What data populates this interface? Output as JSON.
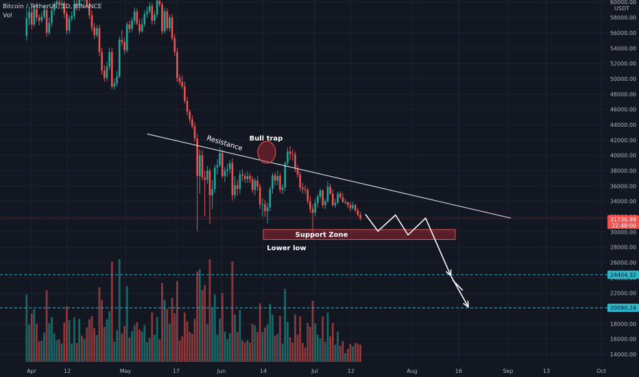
{
  "header": {
    "symbol_label": "Bitcoin / TetherUS, 1D, BINANCE",
    "indicator_label": "Vol"
  },
  "axis": {
    "currency": "USDT",
    "top_label": "60000.00"
  },
  "colors": {
    "background": "#131722",
    "up": "#26a69a",
    "down": "#ef5350",
    "grid": "#1e222d",
    "text": "#d1d4dc",
    "axis_text": "#b2b5be",
    "drawing": "#ffffff",
    "support": "#b22833",
    "target_line": "#2bb6c9"
  },
  "chart_data": {
    "type": "candlestick",
    "title": "Bitcoin / TetherUS, 1D, BINANCE",
    "ylim": [
      13000,
      61000
    ],
    "y_ticks": [
      14000,
      16000,
      18000,
      20000,
      22000,
      24000,
      26000,
      28000,
      30000,
      32000,
      34000,
      36000,
      38000,
      40000,
      42000,
      44000,
      46000,
      48000,
      50000,
      52000,
      54000,
      56000,
      58000,
      60000
    ],
    "x_ticks": [
      "Apr",
      "12",
      "May",
      "17",
      "Jun",
      "14",
      "Jul",
      "12",
      "Aug",
      "16",
      "Sep",
      "13",
      "Oct"
    ],
    "current_price": "31736.99",
    "countdown": "22:48:00",
    "price_levels": [
      {
        "label": "24404.32",
        "value": 24404.32
      },
      {
        "label": "20090.24",
        "value": 20090.24
      }
    ],
    "annotations": {
      "resistance": "Resistance",
      "bull_trap": "Bull trap",
      "support_zone": "Support Zone",
      "lower_low": "Lower low"
    },
    "support_zone_range": [
      29000,
      30300
    ],
    "resistance_line": [
      [
        -85,
        42800
      ],
      [
        60,
        31800
      ]
    ],
    "projection_path": [
      [
        2,
        32300
      ],
      [
        7,
        30100
      ],
      [
        14,
        32200
      ],
      [
        19,
        29600
      ],
      [
        26,
        31800
      ],
      [
        36,
        24300
      ],
      [
        43,
        20200
      ]
    ],
    "candles": [
      [
        55600,
        57900
      ],
      [
        57900,
        58700
      ],
      [
        58700,
        57100
      ],
      [
        57100,
        59100
      ],
      [
        59100,
        58000
      ],
      [
        58000,
        57600
      ],
      [
        57600,
        58100
      ],
      [
        58100,
        59000
      ],
      [
        59000,
        56000
      ],
      [
        56000,
        57300
      ],
      [
        57300,
        58900
      ],
      [
        58900,
        59700
      ],
      [
        59700,
        60100
      ],
      [
        60100,
        59600
      ],
      [
        59600,
        59900
      ],
      [
        59900,
        58500
      ],
      [
        58500,
        56300
      ],
      [
        56300,
        57900
      ],
      [
        57900,
        58200
      ],
      [
        58200,
        59800
      ],
      [
        59800,
        59600
      ],
      [
        59600,
        61000
      ],
      [
        61000,
        60500
      ],
      [
        60500,
        60900
      ],
      [
        60900,
        59800
      ],
      [
        59800,
        58300
      ],
      [
        58300,
        56700
      ],
      [
        56700,
        55700
      ],
      [
        55700,
        56600
      ],
      [
        56600,
        53500
      ],
      [
        53500,
        51100
      ],
      [
        51100,
        50100
      ],
      [
        50100,
        51600
      ],
      [
        51600,
        53500
      ],
      [
        53500,
        49000
      ],
      [
        49000,
        49400
      ],
      [
        49400,
        50300
      ],
      [
        50300,
        55100
      ],
      [
        55100,
        54800
      ],
      [
        54800,
        53700
      ],
      [
        53700,
        57100
      ],
      [
        57100,
        56500
      ],
      [
        56500,
        57600
      ],
      [
        57600,
        58800
      ],
      [
        58800,
        57200
      ],
      [
        57200,
        56200
      ],
      [
        56200,
        57100
      ],
      [
        57100,
        58500
      ],
      [
        58500,
        58800
      ],
      [
        58800,
        59500
      ],
      [
        59500,
        57600
      ],
      [
        57600,
        58400
      ],
      [
        58400,
        60200
      ],
      [
        60200,
        59700
      ],
      [
        59700,
        56200
      ],
      [
        56200,
        58800
      ],
      [
        58800,
        56600
      ],
      [
        56600,
        58000
      ],
      [
        58000,
        55300
      ],
      [
        55300,
        53500
      ],
      [
        53500,
        50100
      ],
      [
        50100,
        49600
      ],
      [
        49600,
        49000
      ],
      [
        49000,
        47100
      ],
      [
        47100,
        45700
      ],
      [
        45700,
        44700
      ],
      [
        44700,
        43800
      ],
      [
        43800,
        42200
      ],
      [
        42200,
        37300
      ],
      [
        37300,
        40000
      ],
      [
        40000,
        37100
      ],
      [
        37100,
        36800
      ],
      [
        36800,
        38000
      ],
      [
        38000,
        34800
      ],
      [
        34800,
        35600
      ],
      [
        35600,
        38400
      ],
      [
        38400,
        38700
      ],
      [
        38700,
        40300
      ],
      [
        40300,
        37300
      ],
      [
        37300,
        38000
      ],
      [
        38000,
        38200
      ],
      [
        38200,
        39000
      ],
      [
        39000,
        34800
      ],
      [
        34800,
        36100
      ],
      [
        36100,
        35600
      ],
      [
        35600,
        37500
      ],
      [
        37500,
        37300
      ],
      [
        37300,
        36900
      ],
      [
        36900,
        37300
      ],
      [
        37300,
        36900
      ],
      [
        36900,
        35500
      ],
      [
        35500,
        36700
      ],
      [
        36700,
        35900
      ],
      [
        35900,
        33600
      ],
      [
        33600,
        33600
      ],
      [
        33600,
        32700
      ],
      [
        32700,
        33200
      ],
      [
        33200,
        35600
      ],
      [
        35600,
        37400
      ],
      [
        37400,
        36700
      ],
      [
        36700,
        37300
      ],
      [
        37300,
        35500
      ],
      [
        35500,
        35800
      ],
      [
        35800,
        39000
      ],
      [
        39000,
        40500
      ],
      [
        40500,
        40200
      ],
      [
        40200,
        40100
      ],
      [
        40100,
        38300
      ],
      [
        38300,
        37500
      ],
      [
        37500,
        35800
      ],
      [
        35800,
        35600
      ],
      [
        35600,
        35500
      ],
      [
        35500,
        34000
      ],
      [
        34000,
        33000
      ],
      [
        33000,
        32500
      ],
      [
        32500,
        33800
      ],
      [
        33800,
        34600
      ],
      [
        34600,
        35400
      ],
      [
        35400,
        33500
      ],
      [
        33500,
        34000
      ],
      [
        34000,
        35900
      ],
      [
        35900,
        35000
      ],
      [
        35000,
        33500
      ],
      [
        33500,
        33800
      ],
      [
        33800,
        35000
      ],
      [
        35000,
        34500
      ],
      [
        34500,
        33900
      ],
      [
        33900,
        33900
      ],
      [
        33900,
        33500
      ],
      [
        33500,
        33100
      ],
      [
        33100,
        33500
      ],
      [
        33500,
        32800
      ],
      [
        32800,
        32200
      ],
      [
        32200,
        31736.99
      ]
    ],
    "wicks": [
      [
        55000,
        59000
      ],
      [
        57000,
        59500
      ],
      [
        56500,
        59400
      ],
      [
        56800,
        59800
      ],
      [
        57500,
        59900
      ],
      [
        57000,
        58400
      ],
      [
        57300,
        58700
      ],
      [
        57800,
        59600
      ],
      [
        55500,
        59400
      ],
      [
        55700,
        58000
      ],
      [
        56800,
        59400
      ],
      [
        58300,
        60100
      ],
      [
        59300,
        60800
      ],
      [
        59200,
        60700
      ],
      [
        59000,
        60300
      ],
      [
        57900,
        60200
      ],
      [
        55800,
        58900
      ],
      [
        55900,
        58300
      ],
      [
        57500,
        58800
      ],
      [
        57700,
        60300
      ],
      [
        58900,
        60300
      ],
      [
        58900,
        61500
      ],
      [
        60100,
        61900
      ],
      [
        60000,
        61600
      ],
      [
        59300,
        61400
      ],
      [
        57800,
        60300
      ],
      [
        56200,
        58900
      ],
      [
        55200,
        57300
      ],
      [
        55400,
        57000
      ],
      [
        53000,
        57100
      ],
      [
        50500,
        54000
      ],
      [
        49600,
        51800
      ],
      [
        49700,
        52200
      ],
      [
        51200,
        54100
      ],
      [
        48700,
        54000
      ],
      [
        48600,
        50000
      ],
      [
        49000,
        51000
      ],
      [
        50100,
        55500
      ],
      [
        54300,
        56400
      ],
      [
        53200,
        55400
      ],
      [
        53400,
        57400
      ],
      [
        56000,
        57600
      ],
      [
        56200,
        58000
      ],
      [
        57100,
        59300
      ],
      [
        57000,
        59200
      ],
      [
        55800,
        57800
      ],
      [
        56000,
        57900
      ],
      [
        56800,
        58900
      ],
      [
        58000,
        59400
      ],
      [
        58500,
        60000
      ],
      [
        57100,
        59900
      ],
      [
        57100,
        58800
      ],
      [
        58000,
        60500
      ],
      [
        59400,
        60900
      ],
      [
        55800,
        60000
      ],
      [
        55900,
        59300
      ],
      [
        56300,
        59200
      ],
      [
        56200,
        58400
      ],
      [
        55000,
        58500
      ],
      [
        53000,
        55800
      ],
      [
        49600,
        54000
      ],
      [
        49200,
        50600
      ],
      [
        48700,
        50400
      ],
      [
        46800,
        49600
      ],
      [
        45200,
        47600
      ],
      [
        44200,
        46000
      ],
      [
        43500,
        45200
      ],
      [
        41800,
        44300
      ],
      [
        30100,
        42800
      ],
      [
        35000,
        40800
      ],
      [
        36700,
        40700
      ],
      [
        32000,
        38000
      ],
      [
        36300,
        38600
      ],
      [
        31000,
        38300
      ],
      [
        33000,
        36800
      ],
      [
        35100,
        38800
      ],
      [
        37500,
        39500
      ],
      [
        38500,
        41000
      ],
      [
        37000,
        40700
      ],
      [
        36500,
        38500
      ],
      [
        37200,
        38900
      ],
      [
        37600,
        39400
      ],
      [
        34100,
        39600
      ],
      [
        34300,
        37300
      ],
      [
        34700,
        36800
      ],
      [
        35000,
        38000
      ],
      [
        36600,
        38200
      ],
      [
        36400,
        37700
      ],
      [
        36400,
        37900
      ],
      [
        36400,
        37700
      ],
      [
        35100,
        37300
      ],
      [
        34800,
        37000
      ],
      [
        35400,
        37300
      ],
      [
        33000,
        36300
      ],
      [
        32000,
        34400
      ],
      [
        32000,
        34200
      ],
      [
        31100,
        33800
      ],
      [
        32700,
        35900
      ],
      [
        35000,
        37700
      ],
      [
        36100,
        37800
      ],
      [
        36100,
        38000
      ],
      [
        35100,
        37700
      ],
      [
        34900,
        36200
      ],
      [
        35300,
        39200
      ],
      [
        38700,
        41000
      ],
      [
        39400,
        41200
      ],
      [
        39300,
        40800
      ],
      [
        37800,
        40500
      ],
      [
        37100,
        38800
      ],
      [
        35300,
        37900
      ],
      [
        35000,
        36400
      ],
      [
        35000,
        36100
      ],
      [
        33600,
        35800
      ],
      [
        32500,
        34700
      ],
      [
        29000,
        33600
      ],
      [
        32000,
        34300
      ],
      [
        33200,
        34900
      ],
      [
        34300,
        35700
      ],
      [
        33100,
        35600
      ],
      [
        33000,
        34300
      ],
      [
        33800,
        36600
      ],
      [
        34800,
        36300
      ],
      [
        33300,
        35500
      ],
      [
        33100,
        34300
      ],
      [
        33600,
        35300
      ],
      [
        34300,
        35300
      ],
      [
        33800,
        35100
      ],
      [
        33600,
        34300
      ],
      [
        33100,
        33900
      ],
      [
        32700,
        33900
      ],
      [
        32900,
        33900
      ],
      [
        32600,
        33700
      ],
      [
        32000,
        33100
      ],
      [
        31500,
        32600
      ]
    ]
  }
}
